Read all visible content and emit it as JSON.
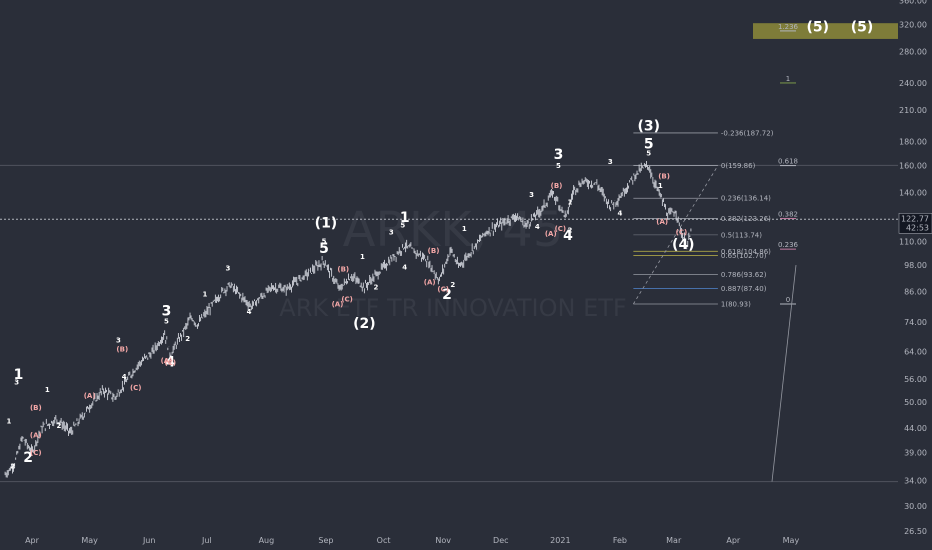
{
  "symbol": {
    "ticker": "ARKK",
    "interval": "45",
    "name": "ARK ETF TR INNOVATION ETF"
  },
  "colors": {
    "background": "#2a2e39",
    "candle": "#d1d4dc",
    "axis_text": "#b2b5be",
    "pink": "#f5a8a8",
    "white": "#ffffff",
    "target_box": "#8d8a3a",
    "blue": "#5b9cf6",
    "yellow": "#c9c14b"
  },
  "chart_data": {
    "type": "candlestick",
    "title": "",
    "y_scale": "log",
    "ylim": [
      24.5,
      360
    ],
    "y_ticks": [
      "360.00",
      "320.00",
      "280.00",
      "240.00",
      "210.00",
      "180.00",
      "160.00",
      "140.00",
      "122.77",
      "110.00",
      "98.00",
      "86.00",
      "74.00",
      "64.00",
      "56.00",
      "50.00",
      "44.00",
      "39.00",
      "34.00",
      "30.00",
      "26.50"
    ],
    "y_tick_values": [
      360,
      320,
      280,
      240,
      210,
      180,
      160,
      140,
      122.77,
      110,
      98,
      86,
      74,
      64,
      56,
      50,
      44,
      39,
      34,
      30,
      26.5
    ],
    "x_ticks": [
      "Apr",
      "May",
      "Jun",
      "Jul",
      "Aug",
      "Sep",
      "Oct",
      "Nov",
      "Dec",
      "2021",
      "Feb",
      "Mar",
      "Apr",
      "May"
    ],
    "x_tick_dates": [
      "2020-04-01",
      "2020-05-01",
      "2020-06-01",
      "2020-07-01",
      "2020-08-01",
      "2020-09-01",
      "2020-10-01",
      "2020-11-01",
      "2020-12-01",
      "2021-01-01",
      "2021-02-01",
      "2021-03-01",
      "2021-04-01",
      "2021-05-01"
    ],
    "last_price": {
      "value": "122.77",
      "countdown": "42:53"
    },
    "price_path": [
      [
        "2020-03-18",
        35
      ],
      [
        "2020-03-23",
        37
      ],
      [
        "2020-03-27",
        42
      ],
      [
        "2020-04-01",
        39
      ],
      [
        "2020-04-06",
        44
      ],
      [
        "2020-04-14",
        46
      ],
      [
        "2020-04-21",
        43
      ],
      [
        "2020-05-01",
        49
      ],
      [
        "2020-05-08",
        53
      ],
      [
        "2020-05-14",
        51
      ],
      [
        "2020-05-26",
        60
      ],
      [
        "2020-06-03",
        64
      ],
      [
        "2020-06-09",
        70
      ],
      [
        "2020-06-12",
        63
      ],
      [
        "2020-06-23",
        76
      ],
      [
        "2020-06-26",
        73
      ],
      [
        "2020-07-09",
        86
      ],
      [
        "2020-07-13",
        89
      ],
      [
        "2020-07-24",
        80
      ],
      [
        "2020-08-04",
        88
      ],
      [
        "2020-08-11",
        87
      ],
      [
        "2020-08-24",
        95
      ],
      [
        "2020-08-31",
        100
      ],
      [
        "2020-09-08",
        87
      ],
      [
        "2020-09-14",
        93
      ],
      [
        "2020-09-21",
        88
      ],
      [
        "2020-10-02",
        98
      ],
      [
        "2020-10-12",
        108
      ],
      [
        "2020-10-23",
        101
      ],
      [
        "2020-10-30",
        91
      ],
      [
        "2020-11-05",
        106
      ],
      [
        "2020-11-09",
        97
      ],
      [
        "2020-11-23",
        115
      ],
      [
        "2020-12-09",
        125
      ],
      [
        "2020-12-14",
        119
      ],
      [
        "2020-12-23",
        130
      ],
      [
        "2020-12-28",
        140
      ],
      [
        "2021-01-04",
        124
      ],
      [
        "2021-01-08",
        142
      ],
      [
        "2021-01-13",
        148
      ],
      [
        "2021-01-20",
        146
      ],
      [
        "2021-01-27",
        131
      ],
      [
        "2021-02-01",
        137
      ],
      [
        "2021-02-09",
        153
      ],
      [
        "2021-02-12",
        157
      ],
      [
        "2021-02-16",
        160
      ],
      [
        "2021-02-18",
        150
      ],
      [
        "2021-02-23",
        135
      ],
      [
        "2021-02-26",
        125
      ],
      [
        "2021-03-02",
        128
      ],
      [
        "2021-03-05",
        115
      ],
      [
        "2021-03-08",
        108
      ],
      [
        "2021-03-10",
        115
      ]
    ],
    "fib_retracement": [
      {
        "label": "-0.236(187.72)",
        "price": 187.72,
        "color": "#b2b5be"
      },
      {
        "label": "0(159.86)",
        "price": 159.86,
        "color": "#b2b5be"
      },
      {
        "label": "0.236(136.14)",
        "price": 136.14,
        "color": "#b2b5be"
      },
      {
        "label": "0.382(123.26)",
        "price": 123.26,
        "color": "#b2b5be"
      },
      {
        "label": "0.5(113.74)",
        "price": 113.74,
        "color": "#6b6f78"
      },
      {
        "label": "0.618(104.86)",
        "price": 104.86,
        "color": "#c9c14b"
      },
      {
        "label": "0.65(102.70)",
        "price": 102.7,
        "color": "#c9c14b"
      },
      {
        "label": "0.786(93.62)",
        "price": 93.62,
        "color": "#b2b5be"
      },
      {
        "label": "0.887(87.40)",
        "price": 87.4,
        "color": "#5b9cf6"
      },
      {
        "label": "1(80.93)",
        "price": 80.93,
        "color": "#b2b5be"
      }
    ],
    "fib_extension": [
      {
        "label": "1.236",
        "price": 310,
        "color": "#b2b5be"
      },
      {
        "label": "1",
        "price": 240,
        "color": "#7a9a4a"
      },
      {
        "label": "0.618",
        "price": 159.86,
        "color": "#b2b5be"
      },
      {
        "label": "0.382",
        "price": 123.26,
        "color": "#c27ba0"
      },
      {
        "label": "0.236",
        "price": 106,
        "color": "#c27ba0"
      },
      {
        "label": "0",
        "price": 80.93,
        "color": "#b2b5be"
      }
    ],
    "target_zone": {
      "top": 322,
      "bottom": 298,
      "label": "(5)"
    },
    "horizontal_lines": [
      160,
      33.8
    ],
    "waves_major": [
      {
        "label": "(1)",
        "date": "2020-09-01",
        "price": 118
      },
      {
        "label": "(2)",
        "date": "2020-09-21",
        "price": 72
      },
      {
        "label": "(3)",
        "date": "2021-02-16",
        "price": 190
      },
      {
        "label": "(4)",
        "date": "2021-03-06",
        "price": 106
      },
      {
        "label": "(5)",
        "date": "2021-05-15",
        "price": 309
      }
    ],
    "waves_pink": [
      {
        "label": "1",
        "date": "2020-03-25",
        "price": 56
      },
      {
        "label": "2",
        "date": "2020-03-30",
        "price": 37.2
      },
      {
        "label": "3",
        "date": "2020-06-10",
        "price": 76.5
      },
      {
        "label": "4",
        "date": "2020-06-12",
        "price": 59.5
      },
      {
        "label": "5",
        "date": "2020-08-31",
        "price": 104
      },
      {
        "label": "1",
        "date": "2020-10-12",
        "price": 121
      },
      {
        "label": "2",
        "date": "2020-11-03",
        "price": 83
      },
      {
        "label": "3",
        "date": "2020-12-31",
        "price": 165
      },
      {
        "label": "4",
        "date": "2021-01-05",
        "price": 111
      },
      {
        "label": "5",
        "date": "2021-02-16",
        "price": 174
      },
      {
        "label": "(A)",
        "date": "2020-04-03",
        "price": 42
      },
      {
        "label": "(B)",
        "date": "2020-04-03",
        "price": 48
      },
      {
        "label": "(C)",
        "date": "2020-04-03",
        "price": 38.5
      },
      {
        "label": "(A)",
        "date": "2020-05-01",
        "price": 51
      },
      {
        "label": "(B)",
        "date": "2020-05-18",
        "price": 64
      },
      {
        "label": "(C)",
        "date": "2020-05-25",
        "price": 53
      },
      {
        "label": "(A)",
        "date": "2020-06-10",
        "price": 60.5
      },
      {
        "label": "(C)",
        "date": "2020-06-12",
        "price": 60
      },
      {
        "label": "(B)",
        "date": "2020-09-10",
        "price": 95
      },
      {
        "label": "(A)",
        "date": "2020-09-07",
        "price": 80
      },
      {
        "label": "(C)",
        "date": "2020-09-12",
        "price": 82
      },
      {
        "label": "(B)",
        "date": "2020-10-27",
        "price": 104
      },
      {
        "label": "(A)",
        "date": "2020-10-25",
        "price": 89
      },
      {
        "label": "(C)",
        "date": "2020-11-01",
        "price": 86
      },
      {
        "label": "(B)",
        "date": "2020-12-30",
        "price": 143
      },
      {
        "label": "(A)",
        "date": "2020-12-27",
        "price": 113
      },
      {
        "label": "(C)",
        "date": "2021-01-01",
        "price": 116
      },
      {
        "label": "(B)",
        "date": "2021-02-24",
        "price": 150
      },
      {
        "label": "(A)",
        "date": "2021-02-23",
        "price": 120
      },
      {
        "label": "(C)",
        "date": "2021-03-05",
        "price": 114
      }
    ],
    "waves_white": [
      {
        "label": "3",
        "date": "2020-03-24",
        "price": 54.5
      },
      {
        "label": "1",
        "date": "2020-03-20",
        "price": 45
      },
      {
        "label": "2",
        "date": "2020-03-22",
        "price": 36
      },
      {
        "label": "1",
        "date": "2020-04-09",
        "price": 52.5
      },
      {
        "label": "2",
        "date": "2020-04-15",
        "price": 44
      },
      {
        "label": "4",
        "date": "2020-05-19",
        "price": 56
      },
      {
        "label": "3",
        "date": "2020-05-16",
        "price": 67
      },
      {
        "label": "5",
        "date": "2020-06-10",
        "price": 73.5
      },
      {
        "label": "1",
        "date": "2020-06-30",
        "price": 84
      },
      {
        "label": "2",
        "date": "2020-06-21",
        "price": 67.5
      },
      {
        "label": "3",
        "date": "2020-07-12",
        "price": 95.5
      },
      {
        "label": "4",
        "date": "2020-07-23",
        "price": 77
      },
      {
        "label": "5",
        "date": "2020-08-31",
        "price": 109
      },
      {
        "label": "1",
        "date": "2020-09-20",
        "price": 101
      },
      {
        "label": "2",
        "date": "2020-09-27",
        "price": 87
      },
      {
        "label": "3",
        "date": "2020-10-05",
        "price": 114
      },
      {
        "label": "4",
        "date": "2020-10-12",
        "price": 96
      },
      {
        "label": "5",
        "date": "2020-10-11",
        "price": 118
      },
      {
        "label": "1",
        "date": "2020-11-12",
        "price": 116
      },
      {
        "label": "2",
        "date": "2020-11-06",
        "price": 88
      },
      {
        "label": "3",
        "date": "2020-12-17",
        "price": 137
      },
      {
        "label": "4",
        "date": "2020-12-20",
        "price": 117
      },
      {
        "label": "5",
        "date": "2020-12-31",
        "price": 158
      },
      {
        "label": "1",
        "date": "2021-01-06",
        "price": 132
      },
      {
        "label": "2",
        "date": "2021-01-06",
        "price": 115
      },
      {
        "label": "3",
        "date": "2021-01-27",
        "price": 161
      },
      {
        "label": "4",
        "date": "2021-02-01",
        "price": 125
      },
      {
        "label": "5",
        "date": "2021-02-16",
        "price": 168
      },
      {
        "label": "1",
        "date": "2021-02-22",
        "price": 143
      }
    ]
  }
}
